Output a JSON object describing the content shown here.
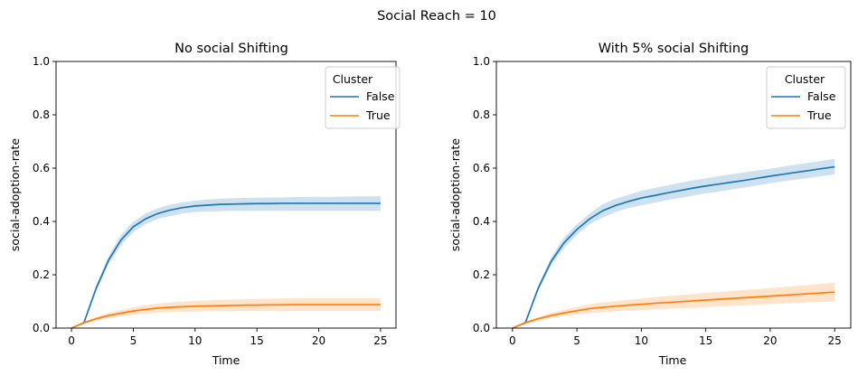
{
  "figure": {
    "suptitle": "Social Reach = 10"
  },
  "chart_data": [
    {
      "type": "line",
      "title": "No social Shifting",
      "xlabel": "Time",
      "ylabel": "social-adoption-rate",
      "xlim": [
        -1.25,
        26.25
      ],
      "ylim": [
        0,
        1
      ],
      "xticks": [
        0,
        5,
        10,
        15,
        20,
        25
      ],
      "yticks": [
        0.0,
        0.2,
        0.4,
        0.6,
        0.8,
        1.0
      ],
      "legend": {
        "title": "Cluster",
        "position": "top-right"
      },
      "x": [
        0,
        1,
        2,
        3,
        4,
        5,
        6,
        7,
        8,
        9,
        10,
        11,
        12,
        13,
        14,
        15,
        16,
        17,
        18,
        19,
        20,
        21,
        22,
        23,
        24,
        25
      ],
      "series": [
        {
          "name": "False",
          "color": "#1f77b4",
          "values": [
            0.0,
            0.02,
            0.15,
            0.255,
            0.33,
            0.38,
            0.41,
            0.43,
            0.443,
            0.452,
            0.458,
            0.461,
            0.464,
            0.465,
            0.466,
            0.467,
            0.467,
            0.468,
            0.468,
            0.468,
            0.468,
            0.468,
            0.468,
            0.468,
            0.468,
            0.468
          ],
          "ci_lower": [
            0.0,
            0.015,
            0.14,
            0.24,
            0.31,
            0.36,
            0.39,
            0.41,
            0.42,
            0.43,
            0.435,
            0.437,
            0.438,
            0.44,
            0.44,
            0.44,
            0.44,
            0.44,
            0.44,
            0.44,
            0.44,
            0.44,
            0.44,
            0.44,
            0.44,
            0.44
          ],
          "ci_upper": [
            0.0,
            0.025,
            0.16,
            0.27,
            0.35,
            0.4,
            0.43,
            0.45,
            0.463,
            0.472,
            0.478,
            0.482,
            0.485,
            0.487,
            0.488,
            0.489,
            0.49,
            0.49,
            0.491,
            0.492,
            0.492,
            0.492,
            0.493,
            0.494,
            0.494,
            0.495
          ]
        },
        {
          "name": "True",
          "color": "#ff7f0e",
          "values": [
            0.0,
            0.02,
            0.035,
            0.047,
            0.056,
            0.064,
            0.07,
            0.075,
            0.078,
            0.08,
            0.082,
            0.083,
            0.084,
            0.085,
            0.086,
            0.086,
            0.087,
            0.087,
            0.088,
            0.088,
            0.088,
            0.088,
            0.088,
            0.088,
            0.088,
            0.088
          ],
          "ci_lower": [
            0.0,
            0.015,
            0.028,
            0.037,
            0.044,
            0.05,
            0.054,
            0.058,
            0.06,
            0.061,
            0.062,
            0.063,
            0.063,
            0.063,
            0.064,
            0.064,
            0.064,
            0.064,
            0.065,
            0.065,
            0.065,
            0.065,
            0.065,
            0.065,
            0.065,
            0.065
          ],
          "ci_upper": [
            0.0,
            0.025,
            0.042,
            0.057,
            0.068,
            0.078,
            0.086,
            0.092,
            0.096,
            0.099,
            0.102,
            0.104,
            0.106,
            0.107,
            0.108,
            0.109,
            0.11,
            0.111,
            0.112,
            0.112,
            0.112,
            0.112,
            0.112,
            0.112,
            0.112,
            0.112
          ]
        }
      ]
    },
    {
      "type": "line",
      "title": "With 5% social Shifting",
      "xlabel": "Time",
      "ylabel": "social-adoption-rate",
      "xlim": [
        -1.25,
        26.25
      ],
      "ylim": [
        0,
        1
      ],
      "xticks": [
        0,
        5,
        10,
        15,
        20,
        25
      ],
      "yticks": [
        0.0,
        0.2,
        0.4,
        0.6,
        0.8,
        1.0
      ],
      "legend": {
        "title": "Cluster",
        "position": "top-right"
      },
      "x": [
        0,
        1,
        2,
        3,
        4,
        5,
        6,
        7,
        8,
        9,
        10,
        11,
        12,
        13,
        14,
        15,
        16,
        17,
        18,
        19,
        20,
        21,
        22,
        23,
        24,
        25
      ],
      "series": [
        {
          "name": "False",
          "color": "#1f77b4",
          "values": [
            0.0,
            0.02,
            0.15,
            0.25,
            0.32,
            0.37,
            0.41,
            0.44,
            0.46,
            0.475,
            0.488,
            0.497,
            0.507,
            0.516,
            0.525,
            0.533,
            0.54,
            0.547,
            0.554,
            0.562,
            0.57,
            0.577,
            0.584,
            0.591,
            0.598,
            0.605
          ],
          "ci_lower": [
            0.0,
            0.015,
            0.14,
            0.235,
            0.3,
            0.35,
            0.39,
            0.415,
            0.435,
            0.45,
            0.46,
            0.47,
            0.48,
            0.488,
            0.497,
            0.505,
            0.512,
            0.52,
            0.527,
            0.535,
            0.543,
            0.55,
            0.557,
            0.563,
            0.57,
            0.577
          ],
          "ci_upper": [
            0.0,
            0.025,
            0.16,
            0.265,
            0.34,
            0.39,
            0.43,
            0.465,
            0.485,
            0.5,
            0.515,
            0.525,
            0.535,
            0.545,
            0.554,
            0.562,
            0.57,
            0.577,
            0.584,
            0.591,
            0.598,
            0.606,
            0.613,
            0.62,
            0.627,
            0.635
          ]
        },
        {
          "name": "True",
          "color": "#ff7f0e",
          "values": [
            0.0,
            0.02,
            0.035,
            0.047,
            0.057,
            0.065,
            0.073,
            0.078,
            0.082,
            0.086,
            0.089,
            0.093,
            0.096,
            0.099,
            0.102,
            0.105,
            0.108,
            0.111,
            0.114,
            0.117,
            0.12,
            0.123,
            0.126,
            0.129,
            0.132,
            0.135
          ],
          "ci_lower": [
            0.0,
            0.015,
            0.028,
            0.037,
            0.045,
            0.051,
            0.056,
            0.06,
            0.063,
            0.066,
            0.068,
            0.07,
            0.072,
            0.074,
            0.076,
            0.078,
            0.081,
            0.083,
            0.085,
            0.088,
            0.09,
            0.092,
            0.094,
            0.096,
            0.098,
            0.1
          ],
          "ci_upper": [
            0.0,
            0.025,
            0.042,
            0.057,
            0.069,
            0.079,
            0.09,
            0.096,
            0.101,
            0.106,
            0.11,
            0.116,
            0.12,
            0.124,
            0.128,
            0.132,
            0.135,
            0.139,
            0.143,
            0.146,
            0.15,
            0.154,
            0.158,
            0.162,
            0.166,
            0.17
          ]
        }
      ]
    }
  ]
}
